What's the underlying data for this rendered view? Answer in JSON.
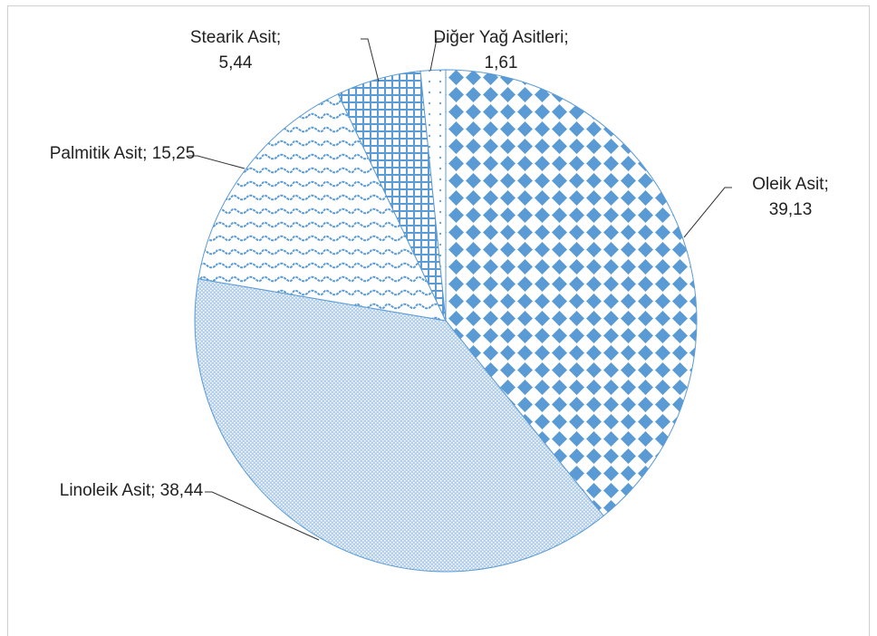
{
  "chart_data": {
    "type": "pie",
    "categories": [
      "Oleik Asit",
      "Linoleik Asit",
      "Palmitik Asit",
      "Stearik Asit",
      "Diğer Yağ Asitleri"
    ],
    "values": [
      39.13,
      38.44,
      15.25,
      5.44,
      1.61
    ],
    "value_labels": [
      "39,13",
      "38,44",
      "15,25",
      "5,44",
      "1,61"
    ],
    "separator": ";",
    "color": "#5b9bd5"
  }
}
